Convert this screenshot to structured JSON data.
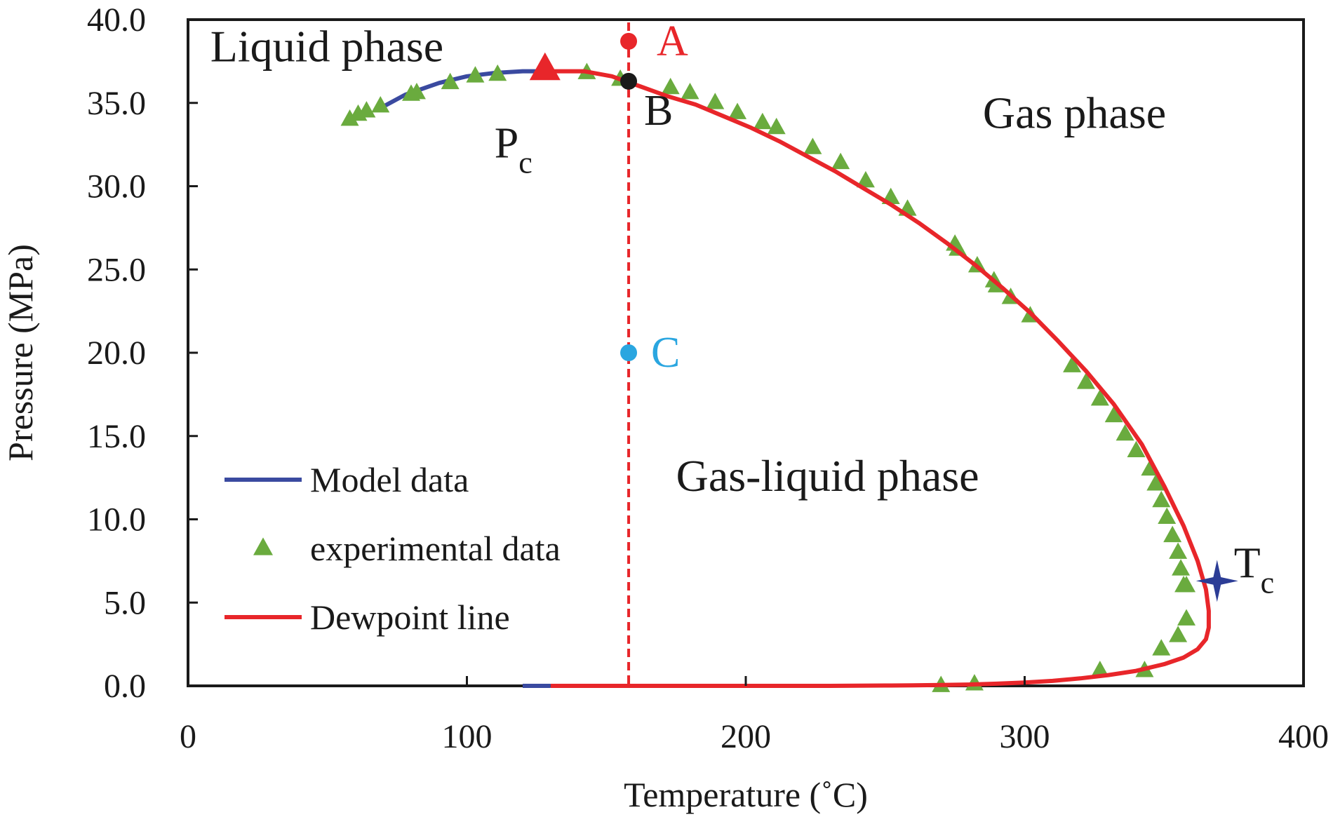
{
  "chart_data": {
    "type": "line",
    "xlabel": "Temperature (˚C)",
    "ylabel": "Pressure (MPa)",
    "xlim": [
      0,
      400
    ],
    "ylim": [
      0,
      40
    ],
    "x_ticks": [
      0,
      100,
      200,
      300,
      400
    ],
    "x_tick_labels": [
      "0",
      "100",
      "200",
      "300",
      "400"
    ],
    "y_ticks": [
      0,
      5,
      10,
      15,
      20,
      25,
      30,
      35,
      40
    ],
    "y_tick_labels": [
      "0.0",
      "5.0",
      "10.0",
      "15.0",
      "20.0",
      "25.0",
      "30.0",
      "35.0",
      "40.0"
    ],
    "grid": false,
    "legend_position": "bottom-left",
    "series": [
      {
        "name": "Model data",
        "kind": "line",
        "color": "#3a4aa0",
        "x": [
          68,
          78,
          90,
          100,
          110,
          120,
          130
        ],
        "y": [
          34.6,
          35.5,
          36.2,
          36.6,
          36.8,
          36.9,
          36.9
        ]
      },
      {
        "name": "experimental data",
        "kind": "scatter",
        "marker": "triangle",
        "color": "#6aab3e",
        "x": [
          58,
          61,
          64,
          69,
          80,
          82,
          94,
          103,
          111,
          143,
          155,
          173,
          180,
          189,
          197,
          206,
          211,
          224,
          234,
          243,
          252,
          258,
          275,
          276,
          283,
          289,
          290,
          295,
          302,
          317,
          322,
          327,
          332,
          336,
          340,
          345,
          347,
          349,
          351,
          353,
          355,
          356,
          357,
          358,
          358,
          355,
          349,
          343,
          327,
          282,
          270
        ],
        "y": [
          34.0,
          34.3,
          34.5,
          34.8,
          35.5,
          35.6,
          36.2,
          36.6,
          36.7,
          36.8,
          36.4,
          35.9,
          35.6,
          35.0,
          34.4,
          33.8,
          33.5,
          32.3,
          31.4,
          30.3,
          29.3,
          28.6,
          26.5,
          26.2,
          25.2,
          24.3,
          24.0,
          23.3,
          22.2,
          19.2,
          18.2,
          17.2,
          16.2,
          15.1,
          14.1,
          13.0,
          12.1,
          11.1,
          10.1,
          9.0,
          8.0,
          7.0,
          6.0,
          6.0,
          4.0,
          3.0,
          2.2,
          0.9,
          0.9,
          0.1,
          0.0
        ]
      },
      {
        "name": "Dewpoint line",
        "kind": "line",
        "color": "#e8262a",
        "x": [
          130,
          142,
          152,
          162,
          172,
          182,
          192,
          202,
          212,
          222,
          232,
          242,
          252,
          262,
          272,
          282,
          292,
          302,
          312,
          322,
          332,
          342,
          350,
          357,
          362,
          365,
          366,
          366,
          365,
          362,
          357,
          350,
          340,
          330,
          320,
          310,
          300,
          290,
          280,
          270,
          260,
          250,
          240,
          230,
          220,
          210,
          200,
          190,
          180,
          170,
          160,
          150,
          140,
          130
        ],
        "y": [
          36.9,
          36.9,
          36.6,
          36.0,
          35.4,
          34.9,
          34.2,
          33.5,
          32.7,
          31.8,
          30.9,
          29.9,
          28.9,
          27.8,
          26.6,
          25.3,
          23.9,
          22.4,
          20.7,
          18.9,
          16.9,
          14.5,
          12.0,
          9.6,
          7.5,
          5.8,
          4.5,
          3.5,
          2.8,
          2.2,
          1.7,
          1.3,
          0.9,
          0.65,
          0.45,
          0.3,
          0.2,
          0.13,
          0.08,
          0.05,
          0.03,
          0.02,
          0.01,
          0.0,
          0.0,
          0.0,
          0.0,
          0.0,
          0.0,
          0.0,
          0.0,
          0.0,
          0.0,
          0.0
        ]
      },
      {
        "name": "Model data (low-pressure segment)",
        "kind": "line",
        "color": "#3a4aa0",
        "in_legend": false,
        "x": [
          120,
          130
        ],
        "y": [
          0.0,
          0.0
        ]
      }
    ],
    "reference_line": {
      "type": "vertical",
      "style": "dashed",
      "color": "#e8262a",
      "x": 158
    },
    "special_points": [
      {
        "id": "Pc",
        "label": "P",
        "sub": "c",
        "x": 128,
        "y": 37.0,
        "marker": "triangle",
        "color": "#e8262a"
      },
      {
        "id": "Tc",
        "label": "T",
        "sub": "c",
        "x": 369,
        "y": 6.3,
        "marker": "star",
        "color": "#2c3d96"
      },
      {
        "id": "A",
        "label": "A",
        "x": 158,
        "y": 38.7,
        "marker": "circle",
        "color": "#e8262a"
      },
      {
        "id": "B",
        "label": "B",
        "x": 158,
        "y": 36.3,
        "marker": "circle",
        "color": "#1a1a1a"
      },
      {
        "id": "C",
        "label": "C",
        "x": 158,
        "y": 20.0,
        "marker": "circle",
        "color": "#2aa6e0"
      }
    ],
    "annotations": [
      {
        "id": "liquid",
        "text": "Liquid phase",
        "x": 8,
        "y": 37.5
      },
      {
        "id": "gas",
        "text": "Gas phase",
        "x": 285,
        "y": 33.5
      },
      {
        "id": "gasliquid",
        "text": "Gas-liquid phase",
        "x": 175,
        "y": 11.7
      }
    ],
    "legend": [
      {
        "label": "Model data",
        "kind": "line",
        "color": "#3a4aa0"
      },
      {
        "label": "experimental data",
        "kind": "triangle",
        "color": "#6aab3e"
      },
      {
        "label": "Dewpoint line",
        "kind": "line",
        "color": "#e8262a"
      }
    ]
  }
}
